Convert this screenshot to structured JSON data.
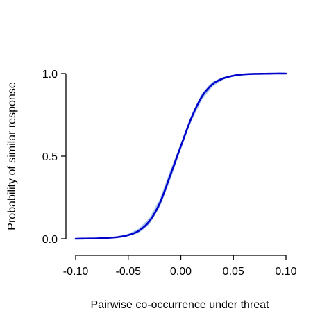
{
  "chart_data": {
    "type": "line",
    "xlabel": "Pairwise co-occurrence under threat",
    "ylabel": "Probability of similar response",
    "xlim": [
      -0.1,
      0.1
    ],
    "ylim": [
      0.0,
      1.0
    ],
    "xticks": [
      -0.1,
      -0.05,
      0.0,
      0.05,
      0.1
    ],
    "xtick_labels": [
      "-0.10",
      "-0.05",
      "0.00",
      "0.05",
      "0.10"
    ],
    "yticks": [
      0.0,
      0.5,
      1.0
    ],
    "ytick_labels": [
      "0.0",
      "0.5",
      "1.0"
    ],
    "grid": false,
    "legend": "none",
    "series": [
      {
        "x": [
          -0.1,
          -0.09,
          -0.08,
          -0.07,
          -0.06,
          -0.05,
          -0.04,
          -0.03,
          -0.02,
          -0.01,
          0.0,
          0.01,
          0.02,
          0.03,
          0.04,
          0.05,
          0.06,
          0.07,
          0.08,
          0.09,
          0.1
        ],
        "y": [
          0.0,
          0.001,
          0.002,
          0.005,
          0.01,
          0.022,
          0.048,
          0.105,
          0.215,
          0.385,
          0.56,
          0.73,
          0.86,
          0.935,
          0.97,
          0.987,
          0.995,
          0.998,
          0.999,
          1.0,
          1.0
        ],
        "y_lower": [
          0.0,
          0.0,
          0.001,
          0.003,
          0.006,
          0.015,
          0.035,
          0.085,
          0.19,
          0.355,
          0.54,
          0.71,
          0.84,
          0.92,
          0.962,
          0.982,
          0.992,
          0.997,
          0.999,
          1.0,
          1.0
        ],
        "y_upper": [
          0.001,
          0.002,
          0.004,
          0.008,
          0.015,
          0.03,
          0.062,
          0.125,
          0.24,
          0.415,
          0.58,
          0.75,
          0.88,
          0.95,
          0.978,
          0.992,
          0.997,
          0.999,
          1.0,
          1.0,
          1.0
        ]
      }
    ],
    "colors": {
      "line": "#0000cc",
      "band": "#a9c8ea",
      "axis": "#000000"
    }
  }
}
